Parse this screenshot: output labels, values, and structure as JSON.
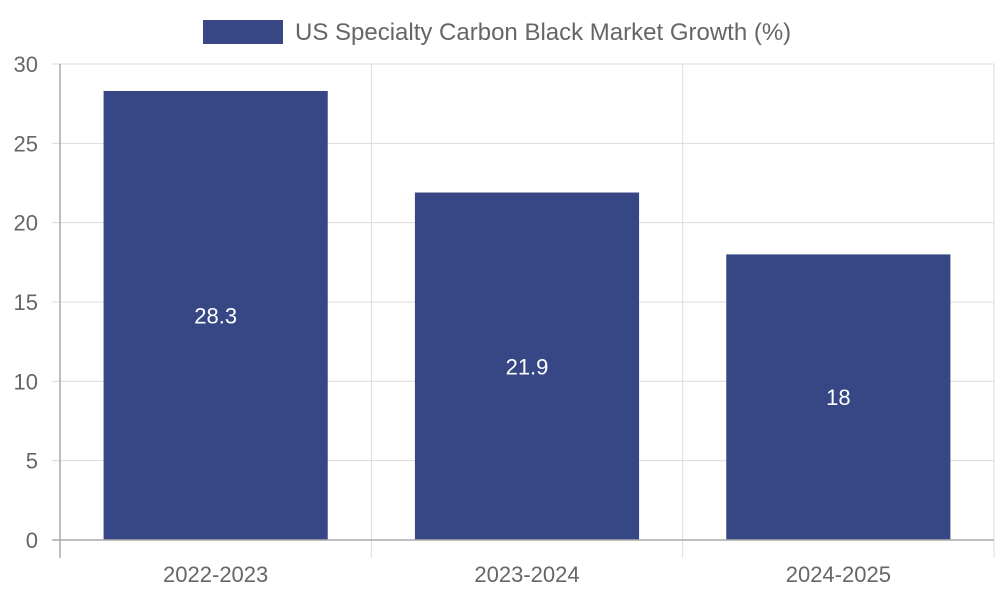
{
  "chart_data": {
    "type": "bar",
    "categories": [
      "2022-2023",
      "2023-2024",
      "2024-2025"
    ],
    "series": [
      {
        "name": "US Specialty Carbon Black Market Growth (%)",
        "values": [
          28.3,
          21.9,
          18
        ],
        "color": "#374785"
      }
    ],
    "data_labels": [
      "28.3",
      "21.9",
      "18"
    ],
    "ylim": [
      0,
      30
    ],
    "yticks": [
      0,
      5,
      10,
      15,
      20,
      25,
      30
    ],
    "grid": true,
    "legend_position": "top-center"
  },
  "colors": {
    "bar": "#374785",
    "text": "#666666",
    "grid": "#dcdcdc",
    "axis": "#aaaaaa"
  }
}
